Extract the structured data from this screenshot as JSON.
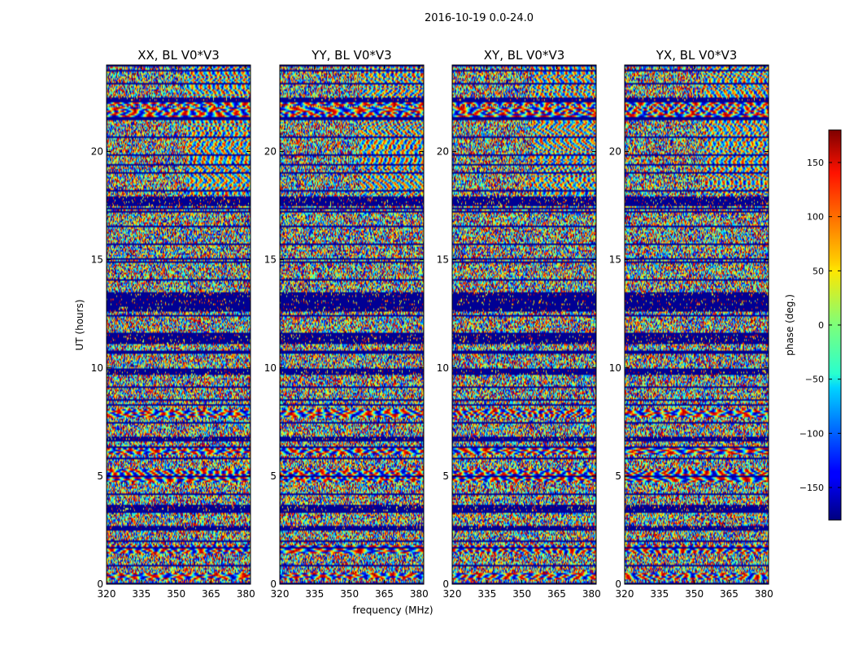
{
  "figure_title": "2016-10-19 0.0-24.0",
  "chart_data": {
    "type": "heatmap",
    "suptitle": "2016-10-19 0.0-24.0",
    "xlabel": "frequency (MHz)",
    "ylabel": "UT (hours)",
    "xlim": [
      320,
      382
    ],
    "ylim": [
      0,
      24
    ],
    "xticks": [
      320,
      335,
      350,
      365,
      380
    ],
    "yticks": [
      0,
      5,
      10,
      15,
      20
    ],
    "colormap": "jet",
    "colorbar": {
      "label": "phase (deg.)",
      "range": [
        -180,
        180
      ],
      "ticks": [
        150,
        100,
        50,
        0,
        -50,
        -100,
        -150
      ],
      "tick_labels": [
        "150",
        "100",
        "50",
        "0",
        "−50",
        "−100",
        "−150"
      ]
    },
    "panels": [
      {
        "title": "XX, BL V0*V3",
        "polarization": "XX",
        "baseline": "V0*V3"
      },
      {
        "title": "YY, BL V0*V3",
        "polarization": "YY",
        "baseline": "V0*V3"
      },
      {
        "title": "XY, BL V0*V3",
        "polarization": "XY",
        "baseline": "V0*V3"
      },
      {
        "title": "YX, BL V0*V3",
        "polarization": "YX",
        "baseline": "V0*V3"
      }
    ],
    "flagged_time_bands_hours": [
      [
        11.1,
        11.6
      ],
      [
        12.6,
        13.5
      ],
      [
        17.5,
        17.9
      ],
      [
        3.3,
        3.7
      ],
      [
        9.7,
        9.95
      ],
      [
        6.7,
        6.85
      ],
      [
        2.55,
        2.7
      ],
      [
        22.35,
        22.5
      ]
    ],
    "fringe_bands_hours": [
      [
        0.2,
        0.55
      ],
      [
        1.4,
        1.8
      ],
      [
        4.7,
        5.3
      ],
      [
        7.7,
        8.1
      ],
      [
        11.3,
        11.5
      ],
      [
        12.85,
        13.3
      ],
      [
        22.1,
        22.4
      ],
      [
        21.5,
        22.05
      ],
      [
        6.0,
        6.35
      ]
    ]
  }
}
